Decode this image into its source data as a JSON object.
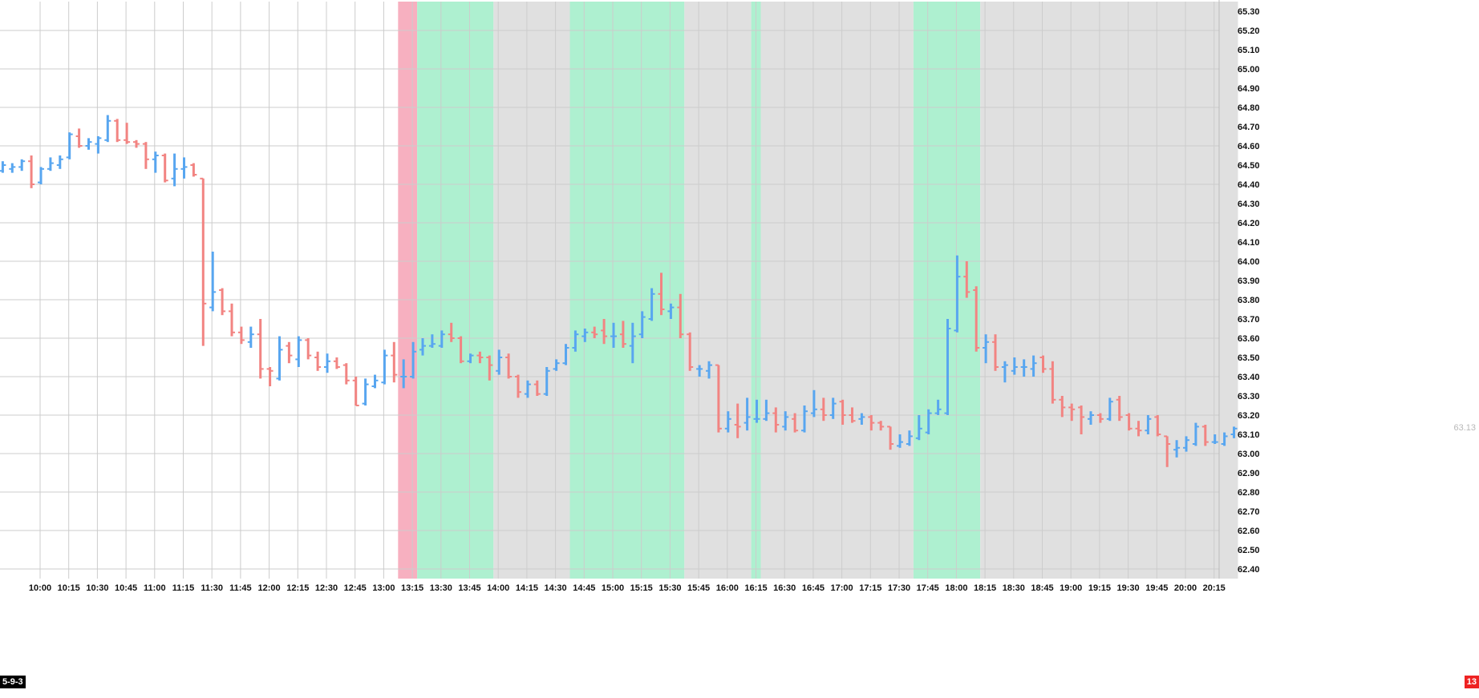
{
  "colors": {
    "up": "#58a6f0",
    "down": "#f28482",
    "band_red": "#f7b0c0",
    "band_green": "#aef0d0",
    "band_gray": "#e0e0e0",
    "grid": "#cccccc"
  },
  "corner_labels": {
    "left": "5-9-3",
    "right": "13"
  },
  "last_price_label": "63.13",
  "chart_data": {
    "type": "ohlc",
    "interval_minutes": 5,
    "y_axis": {
      "ylim": [
        62.35,
        65.35
      ],
      "ticks": [
        "65.30",
        "65.20",
        "65.10",
        "65.00",
        "64.90",
        "64.80",
        "64.70",
        "64.60",
        "64.50",
        "64.40",
        "64.30",
        "64.20",
        "64.10",
        "64.00",
        "63.90",
        "63.80",
        "63.70",
        "63.60",
        "63.50",
        "63.40",
        "63.30",
        "63.20",
        "63.10",
        "63.00",
        "62.90",
        "62.80",
        "62.70",
        "62.60",
        "62.50",
        "62.40"
      ]
    },
    "x_axis": {
      "ticks": [
        "10:00",
        "10:15",
        "10:30",
        "10:45",
        "11:00",
        "11:15",
        "11:30",
        "11:45",
        "12:00",
        "12:15",
        "12:30",
        "12:45",
        "13:00",
        "13:15",
        "13:30",
        "13:45",
        "14:00",
        "14:15",
        "14:30",
        "14:45",
        "15:00",
        "15:15",
        "15:30",
        "15:45",
        "16:00",
        "16:15",
        "16:30",
        "16:45",
        "17:00",
        "17:15",
        "17:30",
        "17:45",
        "18:00",
        "18:15",
        "18:30",
        "18:45",
        "19:00",
        "19:15",
        "19:30",
        "19:45",
        "20:00",
        "20:15"
      ]
    },
    "bands": [
      {
        "color": "red",
        "start": "13:05",
        "end": "13:15"
      },
      {
        "color": "green",
        "start": "13:15",
        "end": "13:55"
      },
      {
        "color": "gray",
        "start": "13:55",
        "end": "14:35"
      },
      {
        "color": "green",
        "start": "14:35",
        "end": "15:35"
      },
      {
        "color": "gray",
        "start": "15:35",
        "end": "16:10"
      },
      {
        "color": "green",
        "start": "16:10",
        "end": "16:15"
      },
      {
        "color": "gray",
        "start": "16:15",
        "end": "17:35"
      },
      {
        "color": "green",
        "start": "17:35",
        "end": "18:10"
      },
      {
        "color": "gray",
        "start": "18:10",
        "end": "20:25"
      }
    ],
    "bars": [
      {
        "t": "09:40",
        "o": 64.47,
        "h": 64.52,
        "l": 64.46,
        "c": 64.5
      },
      {
        "t": "09:45",
        "o": 64.48,
        "h": 64.51,
        "l": 64.46,
        "c": 64.49
      },
      {
        "t": "09:50",
        "o": 64.49,
        "h": 64.53,
        "l": 64.47,
        "c": 64.52
      },
      {
        "t": "09:55",
        "o": 64.52,
        "h": 64.55,
        "l": 64.38,
        "c": 64.4
      },
      {
        "t": "10:00",
        "o": 64.41,
        "h": 64.49,
        "l": 64.4,
        "c": 64.48
      },
      {
        "t": "10:05",
        "o": 64.48,
        "h": 64.54,
        "l": 64.47,
        "c": 64.51
      },
      {
        "t": "10:10",
        "o": 64.5,
        "h": 64.55,
        "l": 64.48,
        "c": 64.53
      },
      {
        "t": "10:15",
        "o": 64.54,
        "h": 64.67,
        "l": 64.53,
        "c": 64.66
      },
      {
        "t": "10:20",
        "o": 64.65,
        "h": 64.69,
        "l": 64.59,
        "c": 64.6
      },
      {
        "t": "10:25",
        "o": 64.6,
        "h": 64.64,
        "l": 64.58,
        "c": 64.62
      },
      {
        "t": "10:30",
        "o": 64.61,
        "h": 64.65,
        "l": 64.56,
        "c": 64.64
      },
      {
        "t": "10:35",
        "o": 64.63,
        "h": 64.76,
        "l": 64.62,
        "c": 64.73
      },
      {
        "t": "10:40",
        "o": 64.73,
        "h": 64.74,
        "l": 64.62,
        "c": 64.63
      },
      {
        "t": "10:45",
        "o": 64.63,
        "h": 64.72,
        "l": 64.61,
        "c": 64.62
      },
      {
        "t": "10:50",
        "o": 64.62,
        "h": 64.63,
        "l": 64.59,
        "c": 64.61
      },
      {
        "t": "10:55",
        "o": 64.61,
        "h": 64.62,
        "l": 64.48,
        "c": 64.53
      },
      {
        "t": "11:00",
        "o": 64.53,
        "h": 64.57,
        "l": 64.46,
        "c": 64.55
      },
      {
        "t": "11:05",
        "o": 64.55,
        "h": 64.56,
        "l": 64.41,
        "c": 64.42
      },
      {
        "t": "11:10",
        "o": 64.43,
        "h": 64.56,
        "l": 64.39,
        "c": 64.48
      },
      {
        "t": "11:15",
        "o": 64.48,
        "h": 64.54,
        "l": 64.43,
        "c": 64.49
      },
      {
        "t": "11:20",
        "o": 64.5,
        "h": 64.51,
        "l": 64.44,
        "c": 64.45
      },
      {
        "t": "11:25",
        "o": 64.43,
        "h": 64.43,
        "l": 63.56,
        "c": 63.78
      },
      {
        "t": "11:30",
        "o": 63.76,
        "h": 64.05,
        "l": 63.74,
        "c": 63.84
      },
      {
        "t": "11:35",
        "o": 63.85,
        "h": 63.86,
        "l": 63.72,
        "c": 63.74
      },
      {
        "t": "11:40",
        "o": 63.74,
        "h": 63.78,
        "l": 63.61,
        "c": 63.63
      },
      {
        "t": "11:45",
        "o": 63.63,
        "h": 63.66,
        "l": 63.57,
        "c": 63.59
      },
      {
        "t": "11:50",
        "o": 63.58,
        "h": 63.66,
        "l": 63.55,
        "c": 63.62
      },
      {
        "t": "11:55",
        "o": 63.62,
        "h": 63.7,
        "l": 63.39,
        "c": 63.44
      },
      {
        "t": "12:00",
        "o": 63.44,
        "h": 63.45,
        "l": 63.35,
        "c": 63.43
      },
      {
        "t": "12:05",
        "o": 63.39,
        "h": 63.61,
        "l": 63.38,
        "c": 63.54
      },
      {
        "t": "12:10",
        "o": 63.56,
        "h": 63.58,
        "l": 63.47,
        "c": 63.51
      },
      {
        "t": "12:15",
        "o": 63.49,
        "h": 63.61,
        "l": 63.45,
        "c": 63.59
      },
      {
        "t": "12:20",
        "o": 63.59,
        "h": 63.6,
        "l": 63.49,
        "c": 63.51
      },
      {
        "t": "12:25",
        "o": 63.5,
        "h": 63.53,
        "l": 63.43,
        "c": 63.45
      },
      {
        "t": "12:30",
        "o": 63.45,
        "h": 63.52,
        "l": 63.42,
        "c": 63.48
      },
      {
        "t": "12:35",
        "o": 63.48,
        "h": 63.5,
        "l": 63.44,
        "c": 63.45
      },
      {
        "t": "12:40",
        "o": 63.46,
        "h": 63.47,
        "l": 63.36,
        "c": 63.38
      },
      {
        "t": "12:45",
        "o": 63.38,
        "h": 63.4,
        "l": 63.25,
        "c": 63.25
      },
      {
        "t": "12:50",
        "o": 63.26,
        "h": 63.39,
        "l": 63.25,
        "c": 63.36
      },
      {
        "t": "12:55",
        "o": 63.35,
        "h": 63.41,
        "l": 63.34,
        "c": 63.38
      },
      {
        "t": "13:00",
        "o": 63.37,
        "h": 63.54,
        "l": 63.36,
        "c": 63.51
      },
      {
        "t": "13:05",
        "o": 63.51,
        "h": 63.58,
        "l": 63.37,
        "c": 63.41
      },
      {
        "t": "13:10",
        "o": 63.4,
        "h": 63.49,
        "l": 63.34,
        "c": 63.4
      },
      {
        "t": "13:15",
        "o": 63.4,
        "h": 63.58,
        "l": 63.39,
        "c": 63.53
      },
      {
        "t": "13:20",
        "o": 63.54,
        "h": 63.6,
        "l": 63.51,
        "c": 63.56
      },
      {
        "t": "13:25",
        "o": 63.56,
        "h": 63.62,
        "l": 63.55,
        "c": 63.57
      },
      {
        "t": "13:30",
        "o": 63.56,
        "h": 63.64,
        "l": 63.55,
        "c": 63.62
      },
      {
        "t": "13:35",
        "o": 63.62,
        "h": 63.68,
        "l": 63.58,
        "c": 63.6
      },
      {
        "t": "13:40",
        "o": 63.6,
        "h": 63.61,
        "l": 63.47,
        "c": 63.48
      },
      {
        "t": "13:45",
        "o": 63.48,
        "h": 63.52,
        "l": 63.47,
        "c": 63.51
      },
      {
        "t": "13:50",
        "o": 63.51,
        "h": 63.53,
        "l": 63.47,
        "c": 63.5
      },
      {
        "t": "13:55",
        "o": 63.5,
        "h": 63.51,
        "l": 63.38,
        "c": 63.46
      },
      {
        "t": "14:00",
        "o": 63.43,
        "h": 63.54,
        "l": 63.41,
        "c": 63.5
      },
      {
        "t": "14:05",
        "o": 63.5,
        "h": 63.52,
        "l": 63.39,
        "c": 63.4
      },
      {
        "t": "14:10",
        "o": 63.4,
        "h": 63.41,
        "l": 63.29,
        "c": 63.32
      },
      {
        "t": "14:15",
        "o": 63.31,
        "h": 63.38,
        "l": 63.29,
        "c": 63.36
      },
      {
        "t": "14:20",
        "o": 63.36,
        "h": 63.38,
        "l": 63.3,
        "c": 63.31
      },
      {
        "t": "14:25",
        "o": 63.31,
        "h": 63.45,
        "l": 63.3,
        "c": 63.43
      },
      {
        "t": "14:30",
        "o": 63.44,
        "h": 63.49,
        "l": 63.43,
        "c": 63.47
      },
      {
        "t": "14:35",
        "o": 63.47,
        "h": 63.57,
        "l": 63.46,
        "c": 63.55
      },
      {
        "t": "14:40",
        "o": 63.55,
        "h": 63.64,
        "l": 63.53,
        "c": 63.62
      },
      {
        "t": "14:45",
        "o": 63.61,
        "h": 63.65,
        "l": 63.58,
        "c": 63.63
      },
      {
        "t": "14:50",
        "o": 63.63,
        "h": 63.66,
        "l": 63.6,
        "c": 63.62
      },
      {
        "t": "14:55",
        "o": 63.64,
        "h": 63.7,
        "l": 63.57,
        "c": 63.61
      },
      {
        "t": "15:00",
        "o": 63.61,
        "h": 63.68,
        "l": 63.55,
        "c": 63.61
      },
      {
        "t": "15:05",
        "o": 63.62,
        "h": 63.69,
        "l": 63.55,
        "c": 63.57
      },
      {
        "t": "15:10",
        "o": 63.56,
        "h": 63.68,
        "l": 63.47,
        "c": 63.61
      },
      {
        "t": "15:15",
        "o": 63.62,
        "h": 63.74,
        "l": 63.6,
        "c": 63.71
      },
      {
        "t": "15:20",
        "o": 63.7,
        "h": 63.86,
        "l": 63.69,
        "c": 63.83
      },
      {
        "t": "15:25",
        "o": 63.83,
        "h": 63.94,
        "l": 63.72,
        "c": 63.75
      },
      {
        "t": "15:30",
        "o": 63.74,
        "h": 63.78,
        "l": 63.7,
        "c": 63.76
      },
      {
        "t": "15:35",
        "o": 63.76,
        "h": 63.83,
        "l": 63.6,
        "c": 63.62
      },
      {
        "t": "15:40",
        "o": 63.62,
        "h": 63.63,
        "l": 63.43,
        "c": 63.45
      },
      {
        "t": "15:45",
        "o": 63.44,
        "h": 63.46,
        "l": 63.4,
        "c": 63.44
      },
      {
        "t": "15:50",
        "o": 63.43,
        "h": 63.48,
        "l": 63.39,
        "c": 63.46
      },
      {
        "t": "15:55",
        "o": 63.46,
        "h": 63.46,
        "l": 63.11,
        "c": 63.13
      },
      {
        "t": "16:00",
        "o": 63.13,
        "h": 63.22,
        "l": 63.11,
        "c": 63.18
      },
      {
        "t": "16:05",
        "o": 63.15,
        "h": 63.26,
        "l": 63.08,
        "c": 63.14
      },
      {
        "t": "16:10",
        "o": 63.16,
        "h": 63.29,
        "l": 63.12,
        "c": 63.19
      },
      {
        "t": "16:15",
        "o": 63.18,
        "h": 63.28,
        "l": 63.16,
        "c": 63.18
      },
      {
        "t": "16:20",
        "o": 63.18,
        "h": 63.28,
        "l": 63.17,
        "c": 63.21
      },
      {
        "t": "16:25",
        "o": 63.21,
        "h": 63.24,
        "l": 63.11,
        "c": 63.15
      },
      {
        "t": "16:30",
        "o": 63.14,
        "h": 63.22,
        "l": 63.12,
        "c": 63.19
      },
      {
        "t": "16:35",
        "o": 63.18,
        "h": 63.21,
        "l": 63.11,
        "c": 63.12
      },
      {
        "t": "16:40",
        "o": 63.12,
        "h": 63.25,
        "l": 63.11,
        "c": 63.22
      },
      {
        "t": "16:45",
        "o": 63.21,
        "h": 63.33,
        "l": 63.19,
        "c": 63.23
      },
      {
        "t": "16:50",
        "o": 63.23,
        "h": 63.29,
        "l": 63.17,
        "c": 63.2
      },
      {
        "t": "16:55",
        "o": 63.2,
        "h": 63.29,
        "l": 63.18,
        "c": 63.26
      },
      {
        "t": "17:00",
        "o": 63.27,
        "h": 63.28,
        "l": 63.15,
        "c": 63.2
      },
      {
        "t": "17:05",
        "o": 63.2,
        "h": 63.24,
        "l": 63.16,
        "c": 63.17
      },
      {
        "t": "17:10",
        "o": 63.18,
        "h": 63.21,
        "l": 63.15,
        "c": 63.19
      },
      {
        "t": "17:15",
        "o": 63.19,
        "h": 63.2,
        "l": 63.12,
        "c": 63.16
      },
      {
        "t": "17:20",
        "o": 63.16,
        "h": 63.17,
        "l": 63.12,
        "c": 63.14
      },
      {
        "t": "17:25",
        "o": 63.14,
        "h": 63.14,
        "l": 63.02,
        "c": 63.05
      },
      {
        "t": "17:30",
        "o": 63.04,
        "h": 63.1,
        "l": 63.03,
        "c": 63.06
      },
      {
        "t": "17:35",
        "o": 63.05,
        "h": 63.12,
        "l": 63.04,
        "c": 63.09
      },
      {
        "t": "17:40",
        "o": 63.08,
        "h": 63.2,
        "l": 63.07,
        "c": 63.13
      },
      {
        "t": "17:45",
        "o": 63.11,
        "h": 63.23,
        "l": 63.1,
        "c": 63.21
      },
      {
        "t": "17:50",
        "o": 63.21,
        "h": 63.28,
        "l": 63.2,
        "c": 63.23
      },
      {
        "t": "17:55",
        "o": 63.21,
        "h": 63.7,
        "l": 63.2,
        "c": 63.65
      },
      {
        "t": "18:00",
        "o": 63.64,
        "h": 64.03,
        "l": 63.63,
        "c": 63.92
      },
      {
        "t": "18:05",
        "o": 63.92,
        "h": 64.0,
        "l": 63.81,
        "c": 63.84
      },
      {
        "t": "18:10",
        "o": 63.85,
        "h": 63.87,
        "l": 63.53,
        "c": 63.55
      },
      {
        "t": "18:15",
        "o": 63.55,
        "h": 63.62,
        "l": 63.47,
        "c": 63.58
      },
      {
        "t": "18:20",
        "o": 63.58,
        "h": 63.62,
        "l": 63.43,
        "c": 63.45
      },
      {
        "t": "18:25",
        "o": 63.45,
        "h": 63.48,
        "l": 63.37,
        "c": 63.46
      },
      {
        "t": "18:30",
        "o": 63.43,
        "h": 63.5,
        "l": 63.41,
        "c": 63.45
      },
      {
        "t": "18:35",
        "o": 63.45,
        "h": 63.49,
        "l": 63.4,
        "c": 63.45
      },
      {
        "t": "18:40",
        "o": 63.44,
        "h": 63.51,
        "l": 63.4,
        "c": 63.47
      },
      {
        "t": "18:45",
        "o": 63.5,
        "h": 63.51,
        "l": 63.42,
        "c": 63.44
      },
      {
        "t": "18:50",
        "o": 63.44,
        "h": 63.48,
        "l": 63.26,
        "c": 63.28
      },
      {
        "t": "18:55",
        "o": 63.28,
        "h": 63.3,
        "l": 63.19,
        "c": 63.24
      },
      {
        "t": "19:00",
        "o": 63.24,
        "h": 63.26,
        "l": 63.17,
        "c": 63.23
      },
      {
        "t": "19:05",
        "o": 63.24,
        "h": 63.25,
        "l": 63.1,
        "c": 63.19
      },
      {
        "t": "19:10",
        "o": 63.18,
        "h": 63.22,
        "l": 63.15,
        "c": 63.2
      },
      {
        "t": "19:15",
        "o": 63.2,
        "h": 63.21,
        "l": 63.16,
        "c": 63.18
      },
      {
        "t": "19:20",
        "o": 63.18,
        "h": 63.29,
        "l": 63.17,
        "c": 63.27
      },
      {
        "t": "19:25",
        "o": 63.28,
        "h": 63.3,
        "l": 63.17,
        "c": 63.19
      },
      {
        "t": "19:30",
        "o": 63.2,
        "h": 63.21,
        "l": 63.12,
        "c": 63.13
      },
      {
        "t": "19:35",
        "o": 63.13,
        "h": 63.17,
        "l": 63.09,
        "c": 63.12
      },
      {
        "t": "19:40",
        "o": 63.12,
        "h": 63.2,
        "l": 63.1,
        "c": 63.18
      },
      {
        "t": "19:45",
        "o": 63.19,
        "h": 63.2,
        "l": 63.09,
        "c": 63.1
      },
      {
        "t": "19:50",
        "o": 63.09,
        "h": 63.09,
        "l": 62.93,
        "c": 63.05
      },
      {
        "t": "19:55",
        "o": 63.02,
        "h": 63.07,
        "l": 62.98,
        "c": 63.03
      },
      {
        "t": "20:00",
        "o": 63.03,
        "h": 63.09,
        "l": 63.01,
        "c": 63.07
      },
      {
        "t": "20:05",
        "o": 63.05,
        "h": 63.16,
        "l": 63.04,
        "c": 63.14
      },
      {
        "t": "20:10",
        "o": 63.14,
        "h": 63.15,
        "l": 63.04,
        "c": 63.06
      },
      {
        "t": "20:15",
        "o": 63.06,
        "h": 63.1,
        "l": 63.05,
        "c": 63.06
      },
      {
        "t": "20:20",
        "o": 63.05,
        "h": 63.11,
        "l": 63.04,
        "c": 63.09
      },
      {
        "t": "20:25",
        "o": 63.1,
        "h": 63.14,
        "l": 63.08,
        "c": 63.13
      }
    ]
  }
}
